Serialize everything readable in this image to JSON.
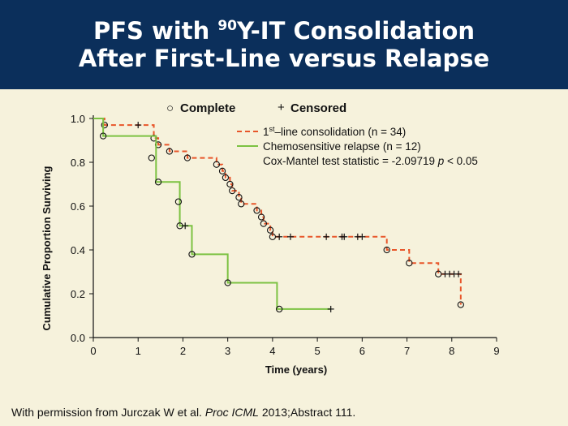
{
  "header": {
    "line1_pre": "PFS with ",
    "line1_sup": "90",
    "line1_post": "Y-IT Consolidation",
    "line2": "After First-Line versus Relapse"
  },
  "legend": {
    "complete_symbol": "○",
    "complete_label": "Complete",
    "censored_symbol": "+",
    "censored_label": "Censored",
    "first_line_pre": "1",
    "first_line_sup": "st",
    "first_line_post": "–line consolidation (n = 34)",
    "relapse_label": "Chemosensitive relapse (n = 12)",
    "stat_pre": "Cox-Mantel test statistic = -2.09719 ",
    "stat_p": "p",
    "stat_post": " < 0.05"
  },
  "footer": {
    "pre": "With permission from Jurczak W et al. ",
    "journal": "Proc ICML",
    "post": " 2013;Abstract 111."
  },
  "chart_data": {
    "type": "line",
    "xlabel": "Time (years)",
    "ylabel": "Cumulative Proportion Surviving",
    "xlim": [
      0,
      9
    ],
    "ylim": [
      0,
      1.0
    ],
    "xticks": [
      "0",
      "1",
      "2",
      "3",
      "4",
      "5",
      "6",
      "7",
      "8",
      "9"
    ],
    "yticks": [
      "0.0",
      "0.2",
      "0.4",
      "0.6",
      "0.8",
      "1.0"
    ],
    "legend_position": "top-right",
    "series": [
      {
        "name": "1st–line consolidation (n = 34)",
        "color": "#e8562a",
        "dash": "dashed",
        "steps": [
          [
            0,
            1.0
          ],
          [
            0.25,
            0.97
          ],
          [
            1.35,
            0.91
          ],
          [
            1.45,
            0.88
          ],
          [
            1.7,
            0.85
          ],
          [
            2.1,
            0.82
          ],
          [
            2.75,
            0.79
          ],
          [
            2.88,
            0.76
          ],
          [
            2.95,
            0.73
          ],
          [
            3.05,
            0.7
          ],
          [
            3.1,
            0.67
          ],
          [
            3.25,
            0.64
          ],
          [
            3.3,
            0.61
          ],
          [
            3.65,
            0.58
          ],
          [
            3.75,
            0.55
          ],
          [
            3.8,
            0.52
          ],
          [
            3.95,
            0.49
          ],
          [
            4.0,
            0.46
          ],
          [
            6.55,
            0.4
          ],
          [
            7.05,
            0.34
          ],
          [
            7.7,
            0.29
          ],
          [
            8.2,
            0.15
          ]
        ],
        "end_x": 8.2,
        "events": [
          [
            0.25,
            0.97
          ],
          [
            1.35,
            0.91
          ],
          [
            1.45,
            0.88
          ],
          [
            1.7,
            0.85
          ],
          [
            2.1,
            0.82
          ],
          [
            2.75,
            0.79
          ],
          [
            2.88,
            0.76
          ],
          [
            2.95,
            0.73
          ],
          [
            3.05,
            0.7
          ],
          [
            3.1,
            0.67
          ],
          [
            3.25,
            0.64
          ],
          [
            3.3,
            0.61
          ],
          [
            3.65,
            0.58
          ],
          [
            3.75,
            0.55
          ],
          [
            3.8,
            0.52
          ],
          [
            3.95,
            0.49
          ],
          [
            4.0,
            0.46
          ],
          [
            6.55,
            0.4
          ],
          [
            7.05,
            0.34
          ],
          [
            7.7,
            0.29
          ],
          [
            8.2,
            0.15
          ]
        ],
        "censored": [
          [
            1.0,
            0.97
          ],
          [
            4.15,
            0.46
          ],
          [
            4.4,
            0.46
          ],
          [
            5.2,
            0.46
          ],
          [
            5.55,
            0.46
          ],
          [
            5.6,
            0.46
          ],
          [
            5.9,
            0.46
          ],
          [
            6.0,
            0.46
          ],
          [
            7.85,
            0.29
          ],
          [
            7.95,
            0.29
          ],
          [
            8.05,
            0.29
          ],
          [
            8.15,
            0.29
          ]
        ]
      },
      {
        "name": "Chemosensitive relapse (n = 12)",
        "color": "#7cc242",
        "dash": "solid",
        "steps": [
          [
            0,
            1.0
          ],
          [
            0.22,
            0.92
          ],
          [
            1.4,
            0.71
          ],
          [
            1.93,
            0.51
          ],
          [
            2.2,
            0.38
          ],
          [
            3.0,
            0.25
          ],
          [
            4.1,
            0.13
          ]
        ],
        "end_x": 5.3,
        "events": [
          [
            0.22,
            0.92
          ],
          [
            1.3,
            0.82
          ],
          [
            1.45,
            0.71
          ],
          [
            1.9,
            0.62
          ],
          [
            1.93,
            0.51
          ],
          [
            2.2,
            0.38
          ],
          [
            3.0,
            0.25
          ],
          [
            4.15,
            0.13
          ]
        ],
        "censored": [
          [
            2.05,
            0.51
          ],
          [
            5.3,
            0.13
          ]
        ]
      }
    ]
  }
}
